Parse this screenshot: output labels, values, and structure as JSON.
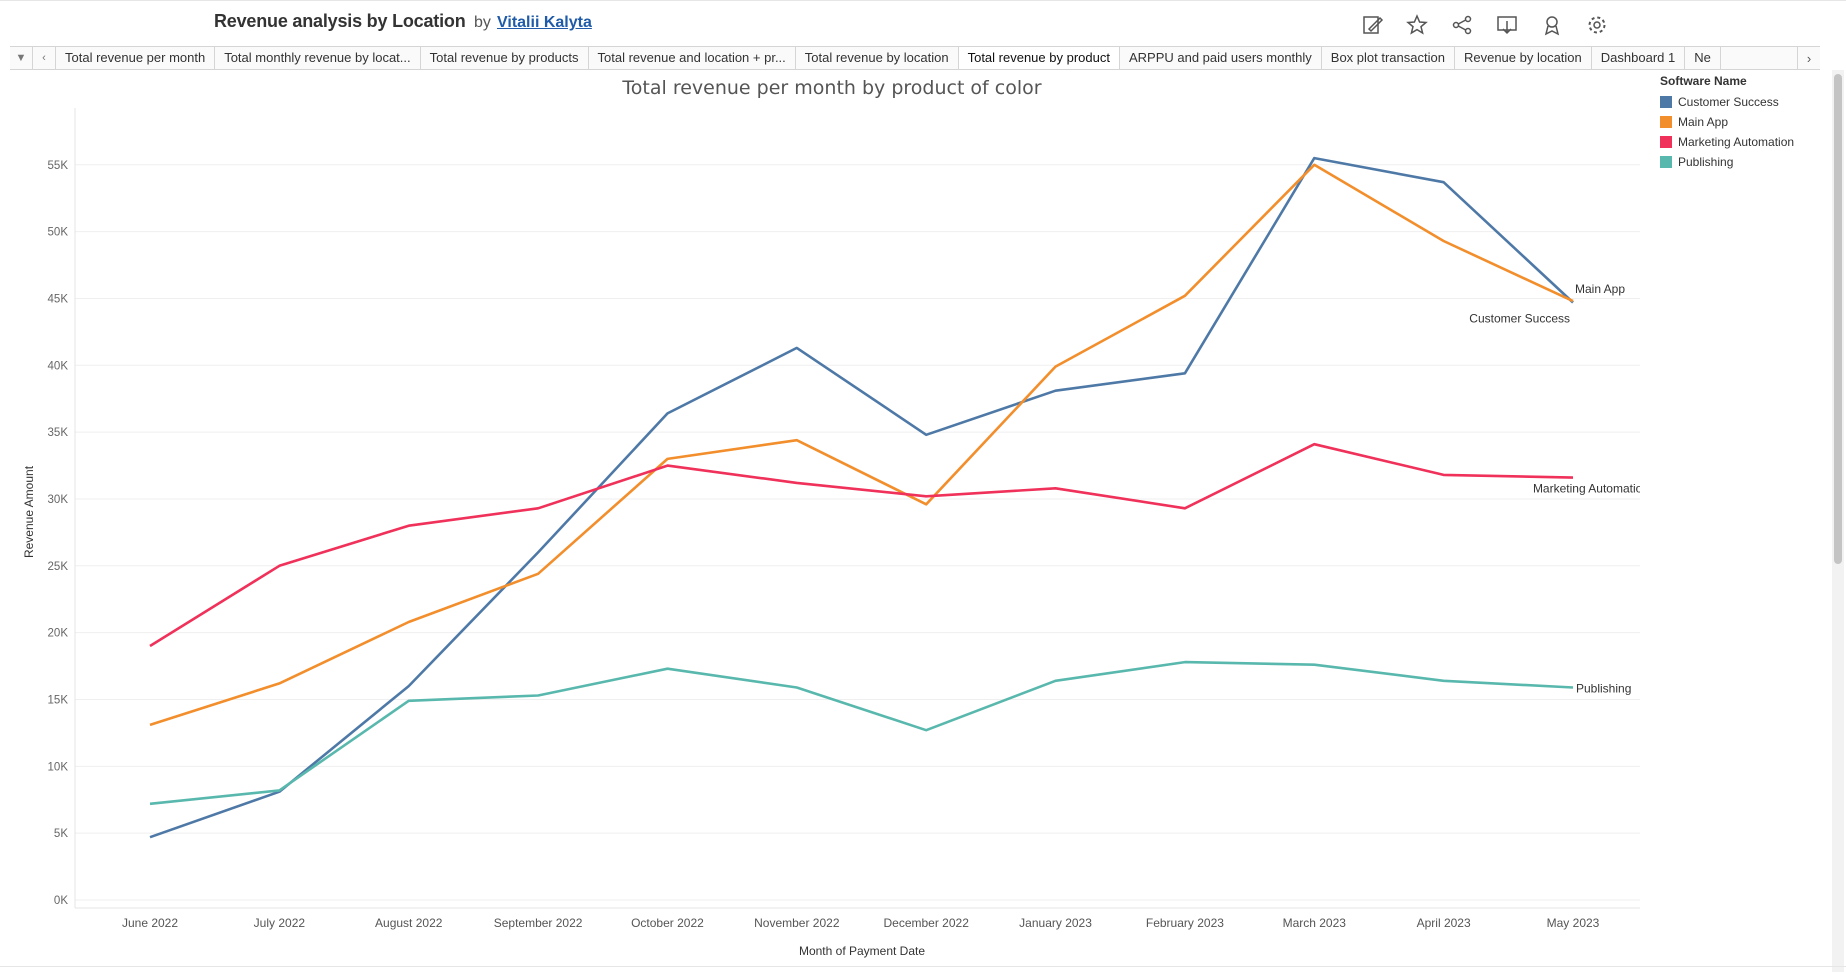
{
  "header": {
    "title": "Revenue analysis by Location",
    "by": "by",
    "author": "Vitalii Kalyta",
    "icons": [
      "edit-icon",
      "favorite-star-icon",
      "share-icon",
      "download-icon",
      "metrics-icon",
      "settings-gear-icon"
    ]
  },
  "tabs": {
    "items": [
      "Total revenue per month",
      "Total monthly revenue by locat...",
      "Total revenue by products",
      "Total revenue and location + pr...",
      "Total revenue by location",
      "Total revenue by product",
      "ARPPU and paid users monthly",
      "Box plot transaction",
      "Revenue by location",
      "Dashboard 1",
      "Ne"
    ],
    "active_index": 5
  },
  "legend": {
    "title": "Software Name",
    "items": [
      {
        "name": "Customer Success",
        "color": "#4e79a7"
      },
      {
        "name": "Main App",
        "color": "#f28e2b"
      },
      {
        "name": "Marketing Automation",
        "color": "#f0315a"
      },
      {
        "name": "Publishing",
        "color": "#59b8ad"
      }
    ]
  },
  "chart_data": {
    "type": "line",
    "title": "Total revenue per month by product of color",
    "xlabel": "Month of Payment Date",
    "ylabel": "Revenue Amount",
    "ylim": [
      0,
      58500
    ],
    "yticks": [
      0,
      5000,
      10000,
      15000,
      20000,
      25000,
      30000,
      35000,
      40000,
      45000,
      50000,
      55000
    ],
    "ytick_labels": [
      "0K",
      "5K",
      "10K",
      "15K",
      "20K",
      "25K",
      "30K",
      "35K",
      "40K",
      "45K",
      "50K",
      "55K"
    ],
    "categories": [
      "June 2022",
      "July 2022",
      "August 2022",
      "September 2022",
      "October 2022",
      "November 2022",
      "December 2022",
      "January 2023",
      "February 2023",
      "March 2023",
      "April 2023",
      "May 2023"
    ],
    "grid": "horizontal",
    "legend": "right",
    "series": [
      {
        "name": "Customer Success",
        "color": "#4e79a7",
        "values": [
          4700,
          8100,
          16000,
          26000,
          36400,
          41300,
          34800,
          38100,
          39400,
          55500,
          53700,
          44700
        ]
      },
      {
        "name": "Main App",
        "color": "#f28e2b",
        "values": [
          13100,
          16200,
          20800,
          24400,
          33000,
          34400,
          29600,
          39900,
          45200,
          55000,
          49300,
          44800
        ]
      },
      {
        "name": "Marketing Automation",
        "color": "#f0315a",
        "values": [
          19000,
          25000,
          28000,
          29300,
          32500,
          31200,
          30200,
          30800,
          29300,
          34100,
          31800,
          31600
        ]
      },
      {
        "name": "Publishing",
        "color": "#59b8ad",
        "values": [
          7200,
          8200,
          14900,
          15300,
          17300,
          15900,
          12700,
          16400,
          17800,
          17600,
          16400,
          15900
        ]
      }
    ],
    "end_labels": [
      "Customer Success",
      "Main App",
      "Marketing Automation",
      "Publishing"
    ]
  }
}
